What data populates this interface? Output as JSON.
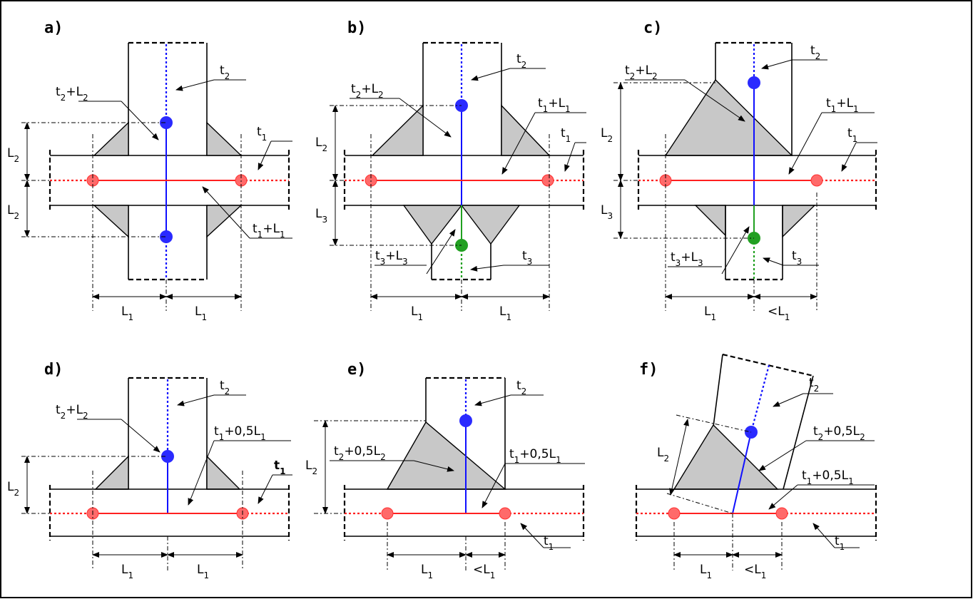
{
  "panels": {
    "a": {
      "title": "a)",
      "t2": "t2",
      "t2L2": "t2+L2",
      "t1": "t1",
      "t1L1": "t1+L1",
      "dim_v1": "L2",
      "dim_v2": "L2",
      "dim_h1": "L1",
      "dim_h2": "L1"
    },
    "b": {
      "title": "b)",
      "t2": "t2",
      "t2L2": "t2+L2",
      "t1": "t1",
      "t1L1": "t1+L1",
      "t3": "t3",
      "t3L3": "t3+L3",
      "dim_v1": "L2",
      "dim_v2": "L3",
      "dim_h1": "L1",
      "dim_h2": "L1"
    },
    "c": {
      "title": "c)",
      "t2": "t2",
      "t2L2": "t2+L2",
      "t1": "t1",
      "t1L1": "t1+L1",
      "t3": "t3",
      "t3L3": "t3+L3",
      "dim_v1": "L2",
      "dim_v2": "L3",
      "dim_h1": "L1",
      "dim_h2": "<L1"
    },
    "d": {
      "title": "d)",
      "t2": "t2",
      "t2L2": "t2+L2",
      "t1": "t1",
      "t1L1": "t1+0,5L1",
      "dim_v1": "L2",
      "dim_h1": "L1",
      "dim_h2": "L1"
    },
    "e": {
      "title": "e)",
      "t2": "t2",
      "t2L2": "t2+0,5L2",
      "t1": "t1",
      "t1L1": "t1+0,5L1",
      "dim_v1": "L2",
      "dim_h1": "L1",
      "dim_h2": "<L1"
    },
    "f": {
      "title": "f)",
      "t2": "t2",
      "t2L2": "t2+0,5L2",
      "t1": "t1",
      "t1L1": "t1+0,5L1",
      "dim_v1": "L2",
      "dim_h1": "L1",
      "dim_h2": "<L1"
    }
  }
}
